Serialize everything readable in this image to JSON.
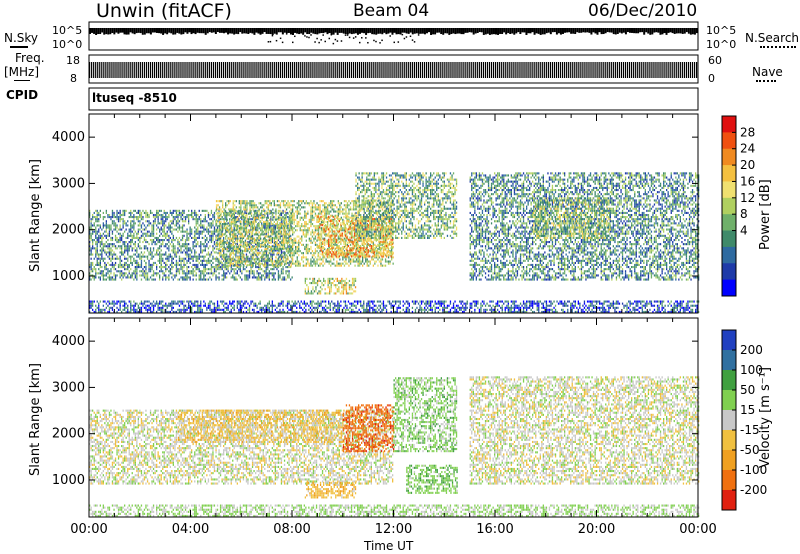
{
  "header": {
    "station": "Unwin (fitACF)",
    "beam": "Beam 04",
    "date": "06/Dec/2010"
  },
  "left_labels": {
    "nsky": "N.Sky",
    "freq": "Freq.",
    "freq_unit": "[MHz]",
    "cpid": "CPID",
    "nsky_ticks": [
      "10^5",
      "10^0"
    ],
    "freq_ticks": [
      "18",
      "8"
    ]
  },
  "right_labels": {
    "nsearch": "N.Search",
    "nave": "Nave",
    "nsearch_ticks": [
      "10^5",
      "10^0"
    ],
    "nave_ticks": [
      "60",
      "0"
    ]
  },
  "cpid_text": "ltuseq -8510",
  "x_axis": {
    "label": "Time UT",
    "ticks": [
      "00:00",
      "04:00",
      "08:00",
      "12:00",
      "16:00",
      "20:00",
      "00:00"
    ]
  },
  "chart_data": [
    {
      "type": "heatmap",
      "name": "power",
      "ylabel": "Slant Range [km]",
      "yticks": [
        1000,
        2000,
        3000,
        4000
      ],
      "ylim": [
        200,
        4500
      ],
      "xlim": [
        0,
        24
      ],
      "colorbar": {
        "label": "Power [dB]",
        "ticks": [
          "28",
          "24",
          "20",
          "16",
          "12",
          "8",
          "4"
        ],
        "colors": [
          "#0000ff",
          "#1e3aa8",
          "#2e6aa0",
          "#3f8a6a",
          "#6fb06a",
          "#b0d060",
          "#f0e070",
          "#f4c040",
          "#f08a20",
          "#f05010",
          "#e01010"
        ]
      },
      "blobs": [
        {
          "t0": 0.0,
          "t1": 8.0,
          "r0": 900,
          "r1": 2400,
          "level": 0.35
        },
        {
          "t0": 5.0,
          "t1": 12.0,
          "r0": 1200,
          "r1": 2600,
          "level": 0.55
        },
        {
          "t0": 9.0,
          "t1": 12.0,
          "r0": 1400,
          "r1": 2300,
          "level": 0.75
        },
        {
          "t0": 10.5,
          "t1": 14.5,
          "r0": 1800,
          "r1": 3200,
          "level": 0.45
        },
        {
          "t0": 8.5,
          "t1": 10.5,
          "r0": 600,
          "r1": 950,
          "level": 0.6
        },
        {
          "t0": 15.0,
          "t1": 24.0,
          "r0": 900,
          "r1": 3200,
          "level": 0.35
        },
        {
          "t0": 17.5,
          "t1": 20.5,
          "r0": 1800,
          "r1": 2700,
          "level": 0.5
        },
        {
          "t0": 0.0,
          "t1": 24.0,
          "r0": 200,
          "r1": 450,
          "level": 0.2
        }
      ]
    },
    {
      "type": "heatmap",
      "name": "velocity",
      "ylabel": "Slant Range [km]",
      "yticks": [
        1000,
        2000,
        3000,
        4000
      ],
      "ylim": [
        200,
        4500
      ],
      "xlim": [
        0,
        24
      ],
      "colorbar": {
        "label": "Velocity [m s⁻¹]",
        "ticks": [
          "200",
          "100",
          "50",
          "15",
          "-15",
          "-50",
          "-100",
          "-200"
        ],
        "colors": [
          "#2040c0",
          "#3070a0",
          "#40a040",
          "#80d050",
          "#c8c8c8",
          "#f0c040",
          "#f0a020",
          "#f07010",
          "#e02010"
        ]
      },
      "blobs": [
        {
          "t0": 0.0,
          "t1": 12.0,
          "r0": 900,
          "r1": 2500,
          "vel": 0
        },
        {
          "t0": 3.5,
          "t1": 10.0,
          "r0": 1800,
          "r1": 2500,
          "vel": -30
        },
        {
          "t0": 10.0,
          "t1": 12.0,
          "r0": 1600,
          "r1": 2600,
          "vel": -180
        },
        {
          "t0": 12.0,
          "t1": 14.5,
          "r0": 1600,
          "r1": 3200,
          "vel": 30
        },
        {
          "t0": 12.5,
          "t1": 14.5,
          "r0": 700,
          "r1": 1300,
          "vel": 40
        },
        {
          "t0": 8.5,
          "t1": 10.5,
          "r0": 600,
          "r1": 950,
          "vel": -40
        },
        {
          "t0": 15.0,
          "t1": 24.0,
          "r0": 900,
          "r1": 3200,
          "vel": 0
        },
        {
          "t0": 0.0,
          "t1": 24.0,
          "r0": 200,
          "r1": 450,
          "vel": 20
        }
      ]
    }
  ]
}
